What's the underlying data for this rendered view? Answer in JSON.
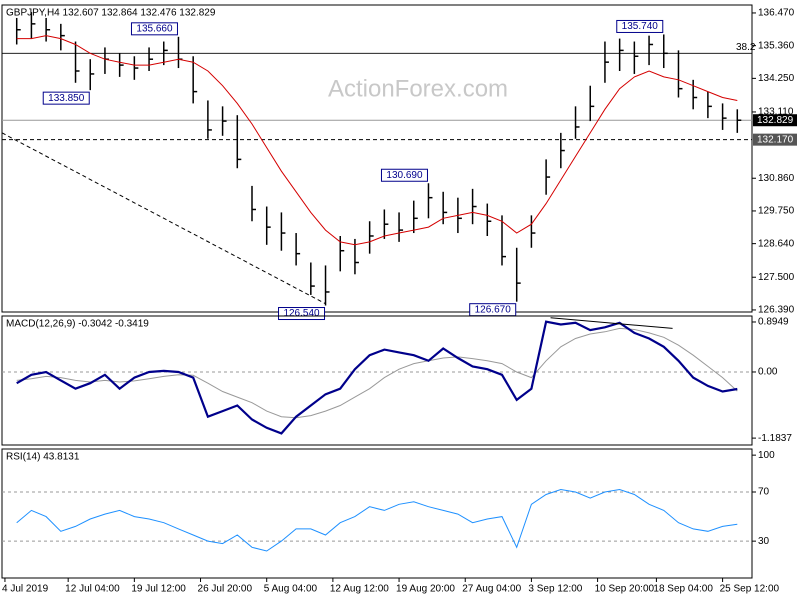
{
  "chart_data": [
    {
      "type": "ohlc",
      "title": "GBPJPY,H4  132.607 132.864 132.476 132.829",
      "watermark": "ActionForex.com",
      "color": "#000000",
      "xlim": [
        -1,
        50
      ],
      "xticks": [
        {
          "value": -0.8,
          "label": "4 Jul 2019"
        },
        {
          "value": 3.5,
          "label": "12 Jul 04:00"
        },
        {
          "value": 8,
          "label": "19 Jul 12:00"
        },
        {
          "value": 12.5,
          "label": "26 Jul 20:00"
        },
        {
          "value": 17,
          "label": "5 Aug 04:00"
        },
        {
          "value": 21.5,
          "label": "12 Aug 12:00"
        },
        {
          "value": 26,
          "label": "19 Aug 20:00"
        },
        {
          "value": 30.5,
          "label": "27 Aug 04:00"
        },
        {
          "value": 35,
          "label": "3 Sep 12:00"
        },
        {
          "value": 39.5,
          "label": "10 Sep 20:00"
        },
        {
          "value": 43.5,
          "label": "18 Sep 04:00"
        },
        {
          "value": 48,
          "label": "25 Sep 12:00"
        }
      ],
      "ylim": [
        126.32,
        136.74
      ],
      "yticks": [
        {
          "value": 136.47,
          "label": "136.470"
        },
        {
          "value": 135.36,
          "label": "135.360"
        },
        {
          "value": 134.25,
          "label": "134.250"
        },
        {
          "value": 133.11,
          "label": "133.110"
        },
        {
          "value": 130.86,
          "label": "130.860"
        },
        {
          "value": 129.75,
          "label": "129.750"
        },
        {
          "value": 128.64,
          "label": "128.640"
        },
        {
          "value": 127.5,
          "label": "127.500"
        },
        {
          "value": 126.39,
          "label": "126.390"
        }
      ],
      "high": [
        136.3,
        136.5,
        136.3,
        136.1,
        135.5,
        134.9,
        135.3,
        135.1,
        135.0,
        135.3,
        135.5,
        135.66,
        135.0,
        133.5,
        133.3,
        133.0,
        130.6,
        129.9,
        129.7,
        129.0,
        128.0,
        127.9,
        128.9,
        128.8,
        129.4,
        129.8,
        129.7,
        130.1,
        130.69,
        130.4,
        130.2,
        130.5,
        130.0,
        129.6,
        128.5,
        129.6,
        131.5,
        132.4,
        133.3,
        134.0,
        135.5,
        135.6,
        135.5,
        135.7,
        135.74,
        135.2,
        134.2,
        133.8,
        133.4,
        133.2
      ],
      "low": [
        135.4,
        135.6,
        135.5,
        135.2,
        134.1,
        133.85,
        134.4,
        134.3,
        134.2,
        134.5,
        134.7,
        134.6,
        133.4,
        132.2,
        132.3,
        131.2,
        129.4,
        128.6,
        128.4,
        127.9,
        126.9,
        126.54,
        127.7,
        127.6,
        128.3,
        128.8,
        128.7,
        129.0,
        129.5,
        129.3,
        129.0,
        129.3,
        128.9,
        127.9,
        126.67,
        128.5,
        130.3,
        131.2,
        132.2,
        132.8,
        134.1,
        134.5,
        134.4,
        134.7,
        134.6,
        133.6,
        133.2,
        132.9,
        132.5,
        132.4
      ],
      "close": [
        135.9,
        136.1,
        135.9,
        135.7,
        134.5,
        134.4,
        134.9,
        134.7,
        134.6,
        134.9,
        135.2,
        134.9,
        133.8,
        132.5,
        132.8,
        131.5,
        129.8,
        129.2,
        129.0,
        128.3,
        127.2,
        127.0,
        128.4,
        128.0,
        128.9,
        129.3,
        129.1,
        129.5,
        130.2,
        129.7,
        129.5,
        129.9,
        129.4,
        128.2,
        127.3,
        129.0,
        130.9,
        131.8,
        132.6,
        133.3,
        134.8,
        135.2,
        135.0,
        135.4,
        135.1,
        133.9,
        133.6,
        133.3,
        132.9,
        132.829
      ],
      "ma": {
        "color": "#d40000",
        "values": [
          135.6,
          135.6,
          135.7,
          135.6,
          135.4,
          135.1,
          134.9,
          134.8,
          134.7,
          134.7,
          134.8,
          134.9,
          134.8,
          134.5,
          134.0,
          133.4,
          132.7,
          131.9,
          131.1,
          130.4,
          129.7,
          129.1,
          128.7,
          128.6,
          128.7,
          128.9,
          129.0,
          129.1,
          129.2,
          129.5,
          129.6,
          129.7,
          129.6,
          129.4,
          129.0,
          129.3,
          130.0,
          130.8,
          131.6,
          132.4,
          133.2,
          133.9,
          134.3,
          134.5,
          134.3,
          134.2,
          134.0,
          133.8,
          133.6,
          133.5
        ]
      },
      "level": {
        "value": 135.1,
        "label": "38.2"
      },
      "last": {
        "value": 132.829,
        "label": "132.829"
      },
      "support": {
        "value": 132.17,
        "label": "132.170"
      },
      "trendline": {
        "x": [
          -1,
          21
        ],
        "y": [
          132.4,
          126.6
        ]
      },
      "annotations": [
        {
          "label": "135.660",
          "value": 135.66,
          "x": 11
        },
        {
          "label": "133.850",
          "value": 133.85,
          "x": 5
        },
        {
          "label": "126.540",
          "value": 126.54,
          "x": 21
        },
        {
          "label": "130.690",
          "value": 130.69,
          "x": 28
        },
        {
          "label": "126.670",
          "value": 126.67,
          "x": 34
        },
        {
          "label": "135.740",
          "value": 135.74,
          "x": 44
        }
      ]
    },
    {
      "type": "macd",
      "title": "MACD(12,26,9) -0.3042 -0.3419",
      "ylim": [
        -1.307,
        1.002
      ],
      "yticks": [
        0.8949,
        {
          "value": 0,
          "label": "0.00"
        },
        -1.1837
      ],
      "zero_line": true,
      "series": [
        {
          "color": "#00008b",
          "values": [
            -0.2,
            -0.05,
            0.0,
            -0.15,
            -0.3,
            -0.2,
            -0.05,
            -0.3,
            -0.1,
            0.0,
            0.02,
            0.0,
            -0.1,
            -0.8,
            -0.7,
            -0.6,
            -0.85,
            -1.0,
            -1.1,
            -0.8,
            -0.6,
            -0.4,
            -0.3,
            0.05,
            0.3,
            0.4,
            0.35,
            0.3,
            0.2,
            0.42,
            0.25,
            0.1,
            0.05,
            -0.05,
            -0.5,
            -0.3,
            0.9,
            0.85,
            0.88,
            0.75,
            0.8,
            0.88,
            0.7,
            0.6,
            0.45,
            0.2,
            -0.1,
            -0.25,
            -0.35,
            -0.3042
          ]
        },
        {
          "color": "#999999",
          "values": [
            -0.15,
            -0.12,
            -0.08,
            -0.1,
            -0.15,
            -0.18,
            -0.15,
            -0.18,
            -0.16,
            -0.12,
            -0.08,
            -0.05,
            -0.06,
            -0.2,
            -0.35,
            -0.45,
            -0.55,
            -0.7,
            -0.8,
            -0.82,
            -0.78,
            -0.7,
            -0.6,
            -0.45,
            -0.3,
            -0.1,
            0.05,
            0.15,
            0.2,
            0.25,
            0.27,
            0.24,
            0.2,
            0.15,
            0.0,
            -0.1,
            0.2,
            0.45,
            0.6,
            0.68,
            0.72,
            0.78,
            0.76,
            0.7,
            0.62,
            0.48,
            0.3,
            0.1,
            -0.1,
            -0.3419
          ]
        }
      ],
      "trendline": {
        "x": [
          36.3,
          44.6
        ],
        "y": [
          0.97,
          0.78
        ]
      }
    },
    {
      "type": "rsi",
      "title": "RSI(14) 43.8131",
      "ylim": [
        0,
        105
      ],
      "yticks": [
        100,
        70,
        30
      ],
      "levels": [
        70,
        30
      ],
      "series": [
        {
          "color": "#1e90ff",
          "values": [
            45,
            55,
            50,
            38,
            42,
            48,
            52,
            55,
            50,
            48,
            45,
            40,
            35,
            30,
            28,
            35,
            25,
            22,
            30,
            40,
            40,
            35,
            45,
            50,
            58,
            55,
            60,
            62,
            58,
            55,
            52,
            45,
            48,
            50,
            25,
            60,
            68,
            72,
            70,
            65,
            70,
            72,
            68,
            60,
            55,
            45,
            40,
            38,
            42,
            43.8131
          ]
        }
      ]
    }
  ]
}
